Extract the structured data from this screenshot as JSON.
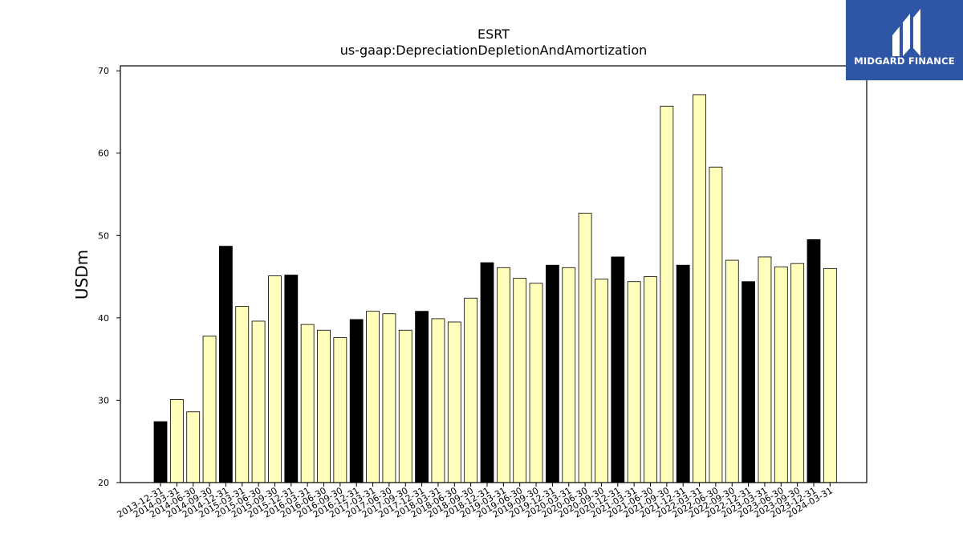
{
  "logo": {
    "text": "MIDGARD FINANCE",
    "icon": "midgard-logo-icon",
    "background": "#2f56a6"
  },
  "chart_data": {
    "type": "bar",
    "title": "ESRT",
    "subtitle": "us-gaap:DepreciationDepletionAndAmortization",
    "xlabel": "",
    "ylabel": "USDm",
    "ylim": [
      20,
      70
    ],
    "yticks": [
      20,
      30,
      40,
      50,
      60,
      70
    ],
    "grid": false,
    "colors": {
      "q4": "#000000",
      "other": "#ffffbb",
      "edge": "#000000"
    },
    "categories": [
      "2013-12-31",
      "2014-03-31",
      "2014-06-30",
      "2014-09-30",
      "2014-12-31",
      "2015-03-31",
      "2015-06-30",
      "2015-09-30",
      "2015-12-31",
      "2016-03-31",
      "2016-06-30",
      "2016-09-30",
      "2016-12-31",
      "2017-03-31",
      "2017-06-30",
      "2017-09-30",
      "2017-12-31",
      "2018-03-31",
      "2018-06-30",
      "2018-09-30",
      "2018-12-31",
      "2019-03-31",
      "2019-06-30",
      "2019-09-30",
      "2019-12-31",
      "2020-03-31",
      "2020-06-30",
      "2020-09-30",
      "2020-12-31",
      "2021-03-31",
      "2021-06-30",
      "2021-09-30",
      "2021-12-31",
      "2022-03-31",
      "2022-06-30",
      "2022-09-30",
      "2022-12-31",
      "2023-03-31",
      "2023-06-30",
      "2023-09-30",
      "2023-12-31",
      "2024-03-31"
    ],
    "values": [
      27.4,
      30.1,
      28.6,
      37.8,
      48.7,
      41.4,
      39.6,
      45.1,
      45.2,
      39.2,
      38.5,
      37.6,
      39.8,
      40.8,
      40.5,
      38.5,
      40.8,
      39.9,
      39.5,
      42.4,
      46.7,
      46.1,
      44.8,
      44.2,
      46.4,
      46.1,
      52.7,
      44.7,
      47.4,
      44.4,
      45.0,
      65.7,
      46.4,
      67.1,
      58.3,
      47.0,
      44.4,
      47.4,
      46.2,
      46.6,
      49.5,
      46.0
    ]
  }
}
